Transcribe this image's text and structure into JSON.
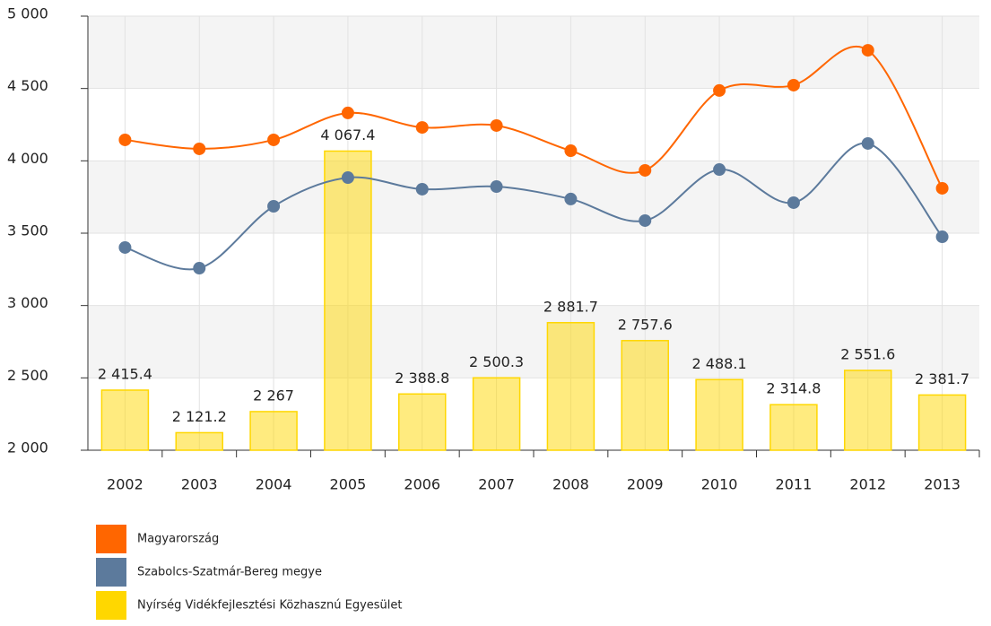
{
  "chart_data": {
    "type": "combo",
    "categories": [
      "2002",
      "2003",
      "2004",
      "2005",
      "2006",
      "2007",
      "2008",
      "2009",
      "2010",
      "2011",
      "2012",
      "2013"
    ],
    "series": [
      {
        "name": "Magyarország",
        "type": "line",
        "color": "#ff6600",
        "values": [
          4145,
          4083,
          4145,
          4331,
          4231,
          4244,
          4070,
          3934,
          4486,
          4523,
          4764,
          3810
        ]
      },
      {
        "name": "Szabolcs-Szatmár-Bereg megye",
        "type": "line",
        "color": "#5c7a9c",
        "values": [
          3401,
          3258,
          3686,
          3884,
          3804,
          3822,
          3736,
          3587,
          3940,
          3711,
          4120,
          3475
        ]
      },
      {
        "name": "Nyírség Vidékfejlesztési Közhasznú Egyesület",
        "type": "bar",
        "color": "#ffd700",
        "values": [
          2415.4,
          2121.2,
          2267,
          4067.4,
          2388.8,
          2500.3,
          2881.7,
          2757.6,
          2488.1,
          2314.8,
          2551.6,
          2381.7
        ],
        "value_labels": [
          "2 415.4",
          "2 121.2",
          "2 267",
          "4 067.4",
          "2 388.8",
          "2 500.3",
          "2 881.7",
          "2 757.6",
          "2 488.1",
          "2 314.8",
          "2 551.6",
          "2 381.7"
        ]
      }
    ],
    "ylim": [
      2000,
      5000
    ],
    "yticks": [
      {
        "value": 2000,
        "label": "2 000"
      },
      {
        "value": 2500,
        "label": "2 500"
      },
      {
        "value": 3000,
        "label": "3 000"
      },
      {
        "value": 3500,
        "label": "3 500"
      },
      {
        "value": 4000,
        "label": "4 000"
      },
      {
        "value": 4500,
        "label": "4 500"
      },
      {
        "value": 5000,
        "label": "5 000"
      }
    ],
    "grid": true,
    "alternate_bands": true,
    "legend": "bottom"
  }
}
